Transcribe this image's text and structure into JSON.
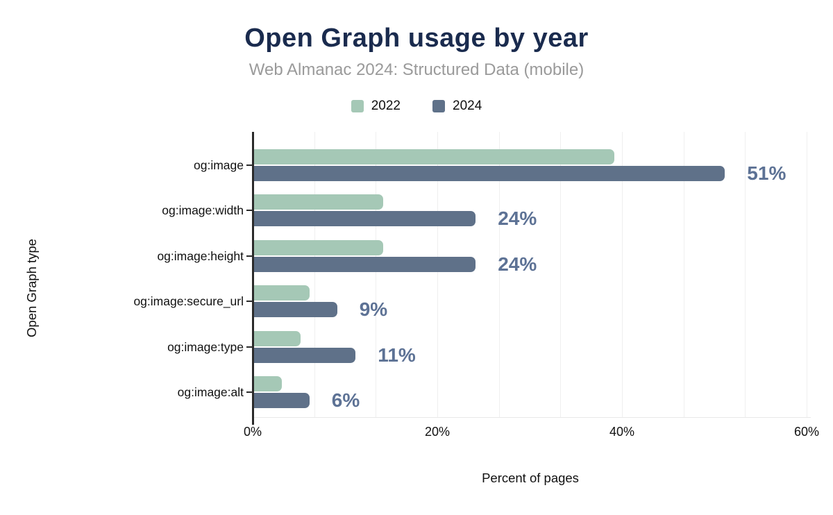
{
  "chart_data": {
    "type": "bar",
    "orientation": "horizontal",
    "title": "Open Graph usage by year",
    "subtitle": "Web Almanac 2024: Structured Data (mobile)",
    "xlabel": "Percent of pages",
    "ylabel": "Open Graph type",
    "categories": [
      "og:image",
      "og:image:width",
      "og:image:height",
      "og:image:secure_url",
      "og:image:type",
      "og:image:alt"
    ],
    "series": [
      {
        "name": "2022",
        "color": "#a5c8b6",
        "values": [
          39,
          14,
          14,
          6,
          5,
          3
        ]
      },
      {
        "name": "2024",
        "color": "#5f7189",
        "values": [
          51,
          24,
          24,
          9,
          11,
          6
        ],
        "labels": [
          "51%",
          "24%",
          "24%",
          "9%",
          "11%",
          "6%"
        ]
      }
    ],
    "x_ticks": [
      {
        "value": 0,
        "label": "0%"
      },
      {
        "value": 20,
        "label": "20%"
      },
      {
        "value": 40,
        "label": "40%"
      },
      {
        "value": 60,
        "label": "60%"
      }
    ],
    "xlim": [
      0,
      60
    ],
    "grid": {
      "vertical_minor_step_pct": 6.667,
      "gridlines": "on",
      "color": "#efefef"
    },
    "legend_position": "top-center",
    "colors": {
      "title": "#1a2b4e",
      "subtitle": "#9a9a9a",
      "value_label": "#5d7295",
      "axis": "#2b2b2b",
      "gridline": "#efefef",
      "background": "#ffffff"
    }
  }
}
